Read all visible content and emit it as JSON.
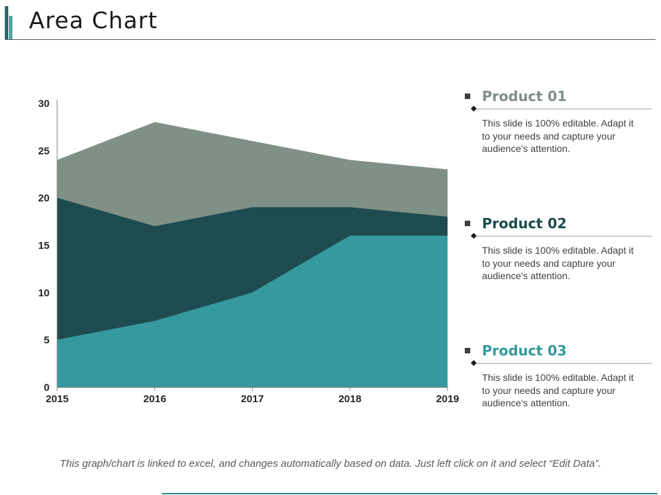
{
  "slide": {
    "title": "Area Chart",
    "footer": "This graph/chart is linked to excel, and changes automatically based on data. Just left click on it and select “Edit Data”."
  },
  "products": [
    {
      "title": "Product 01",
      "color": "#7f9087",
      "description": "This slide is 100% editable. Adapt it to your needs and capture your audience's attention."
    },
    {
      "title": "Product 02",
      "color": "#1d4b4f",
      "description": "This slide is 100% editable. Adapt it to your needs and capture your audience's attention."
    },
    {
      "title": "Product 03",
      "color": "#35999d",
      "description": "This slide is 100% editable. Adapt it to your needs and capture your audience's attention."
    }
  ],
  "chart_data": {
    "type": "area",
    "title": "",
    "xlabel": "",
    "ylabel": "",
    "x": [
      "2015",
      "2016",
      "2017",
      "2018",
      "2019"
    ],
    "series": [
      {
        "name": "Product 01",
        "color": "#7f9087",
        "values": [
          24,
          28,
          26,
          24,
          23
        ]
      },
      {
        "name": "Product 02",
        "color": "#1d4b4f",
        "values": [
          20,
          17,
          19,
          19,
          18
        ]
      },
      {
        "name": "Product 03",
        "color": "#35999d",
        "values": [
          5,
          7,
          10,
          16,
          16
        ]
      }
    ],
    "ylim": [
      0,
      30
    ],
    "yticks": [
      0,
      5,
      10,
      15,
      20,
      25,
      30
    ],
    "overlapping": true,
    "grid": false,
    "legend_position": "none",
    "axis_color": "#7f7f7f",
    "tick_label_color": "#262626"
  }
}
